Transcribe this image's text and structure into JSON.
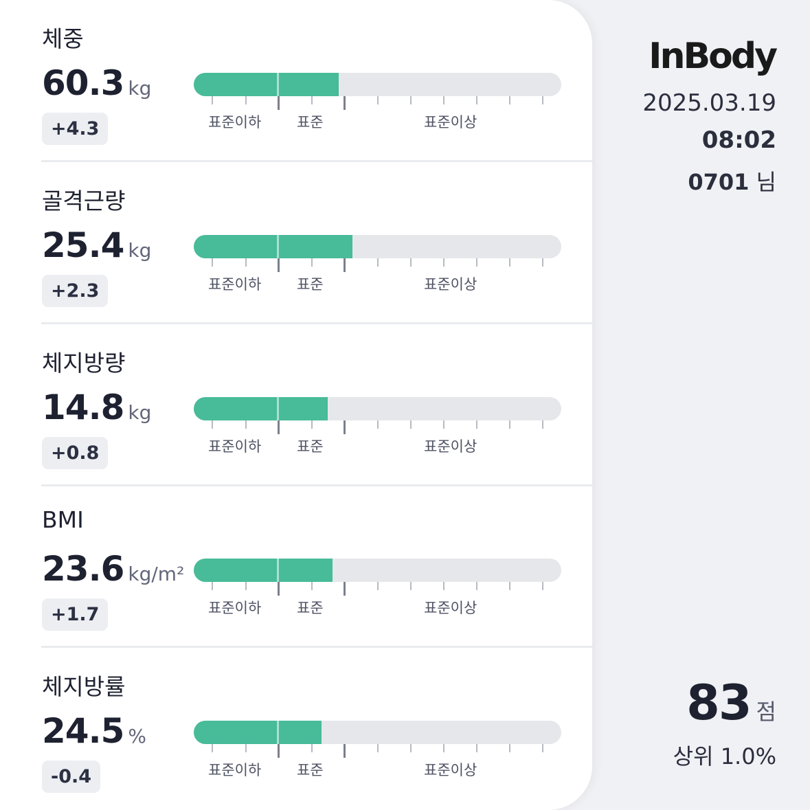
{
  "metrics": [
    {
      "label": "체중",
      "value": "60.3",
      "unit": "kg",
      "delta": "+4.3",
      "fill_fraction": 0.395
    },
    {
      "label": "골격근량",
      "value": "25.4",
      "unit": "kg",
      "delta": "+2.3",
      "fill_fraction": 0.432
    },
    {
      "label": "체지방량",
      "value": "14.8",
      "unit": "kg",
      "delta": "+0.8",
      "fill_fraction": 0.365
    },
    {
      "label": "BMI",
      "value": "23.6",
      "unit": "kg/m²",
      "delta": "+1.7",
      "fill_fraction": 0.377
    },
    {
      "label": "체지방률",
      "value": "24.5",
      "unit": "%",
      "delta": "-0.4",
      "fill_fraction": 0.348
    }
  ],
  "scale_labels": {
    "below": "표준이하",
    "standard": "표준",
    "above": "표준이상"
  },
  "brand": {
    "logo": "InBody",
    "accent": "#48bb99"
  },
  "session": {
    "date": "2025.03.19",
    "time": "08:02",
    "user_id": "0701",
    "user_suffix": "님"
  },
  "score": {
    "value": "83",
    "unit": "점",
    "rank": "상위 1.0%"
  }
}
